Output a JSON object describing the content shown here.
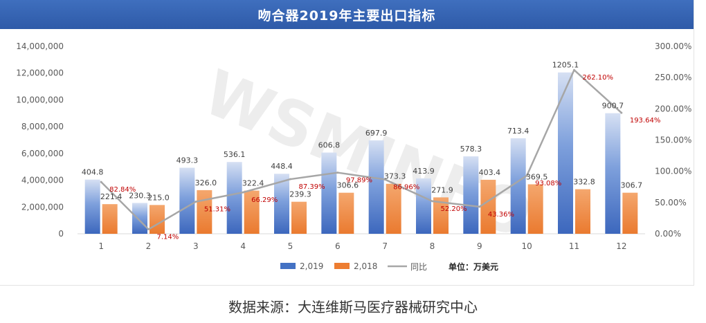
{
  "source": "数据来源：大连维斯马医疗器械研究中心",
  "colors": {
    "title_bg": "#3563b3",
    "series_2019": "#4472c4",
    "series_2018": "#ed7d31",
    "yoy_line": "#a6a6a6",
    "yoy_label": "#c00000",
    "axis_text": "#595959",
    "gridline": "#e6e6e6"
  },
  "chart_data": {
    "type": "bar",
    "title": "吻合器2019年主要出口指标",
    "categories": [
      "1",
      "2",
      "3",
      "4",
      "5",
      "6",
      "7",
      "8",
      "9",
      "10",
      "11",
      "12"
    ],
    "series": [
      {
        "name": "2,019",
        "values": [
          4048000,
          2303000,
          4933000,
          5361000,
          4484000,
          6068000,
          6979000,
          4139000,
          5783000,
          7134000,
          12051000,
          9007000
        ],
        "labels": [
          "404.8",
          "230.3",
          "493.3",
          "536.1",
          "448.4",
          "606.8",
          "697.9",
          "413.9",
          "578.3",
          "713.4",
          "1205.1",
          "900.7"
        ]
      },
      {
        "name": "2,018",
        "values": [
          2214000,
          2150000,
          3260000,
          3224000,
          2393000,
          3066000,
          3733000,
          2719000,
          4034000,
          3695000,
          3328000,
          3067000
        ],
        "labels": [
          "221.4",
          "215.0",
          "326.0",
          "322.4",
          "239.3",
          "306.6",
          "373.3",
          "271.9",
          "403.4",
          "369.5",
          "332.8",
          "306.7"
        ]
      }
    ],
    "line_series": {
      "name": "同比",
      "axis": "right",
      "values": [
        82.84,
        7.14,
        51.31,
        66.29,
        87.39,
        97.89,
        86.96,
        52.2,
        43.36,
        93.08,
        262.1,
        193.64
      ],
      "labels": [
        "82.84%",
        "7.14%",
        "51.31%",
        "66.29%",
        "87.39%",
        "97.89%",
        "86.96%",
        "52.20%",
        "43.36%",
        "93.08%",
        "262.10%",
        "193.64%"
      ]
    },
    "ylim_left": [
      0,
      14000000
    ],
    "yticks_left": [
      "0",
      "2,000,000",
      "4,000,000",
      "6,000,000",
      "8,000,000",
      "10,000,000",
      "12,000,000",
      "14,000,000"
    ],
    "ylim_right": [
      0,
      300
    ],
    "yticks_right": [
      "0.00%",
      "50.00%",
      "100.00%",
      "150.00%",
      "200.00%",
      "250.00%",
      "300.00%"
    ],
    "unit_label": "单位：万美元",
    "legend_position": "bottom",
    "grid": false,
    "watermark": "WSMINFO"
  }
}
